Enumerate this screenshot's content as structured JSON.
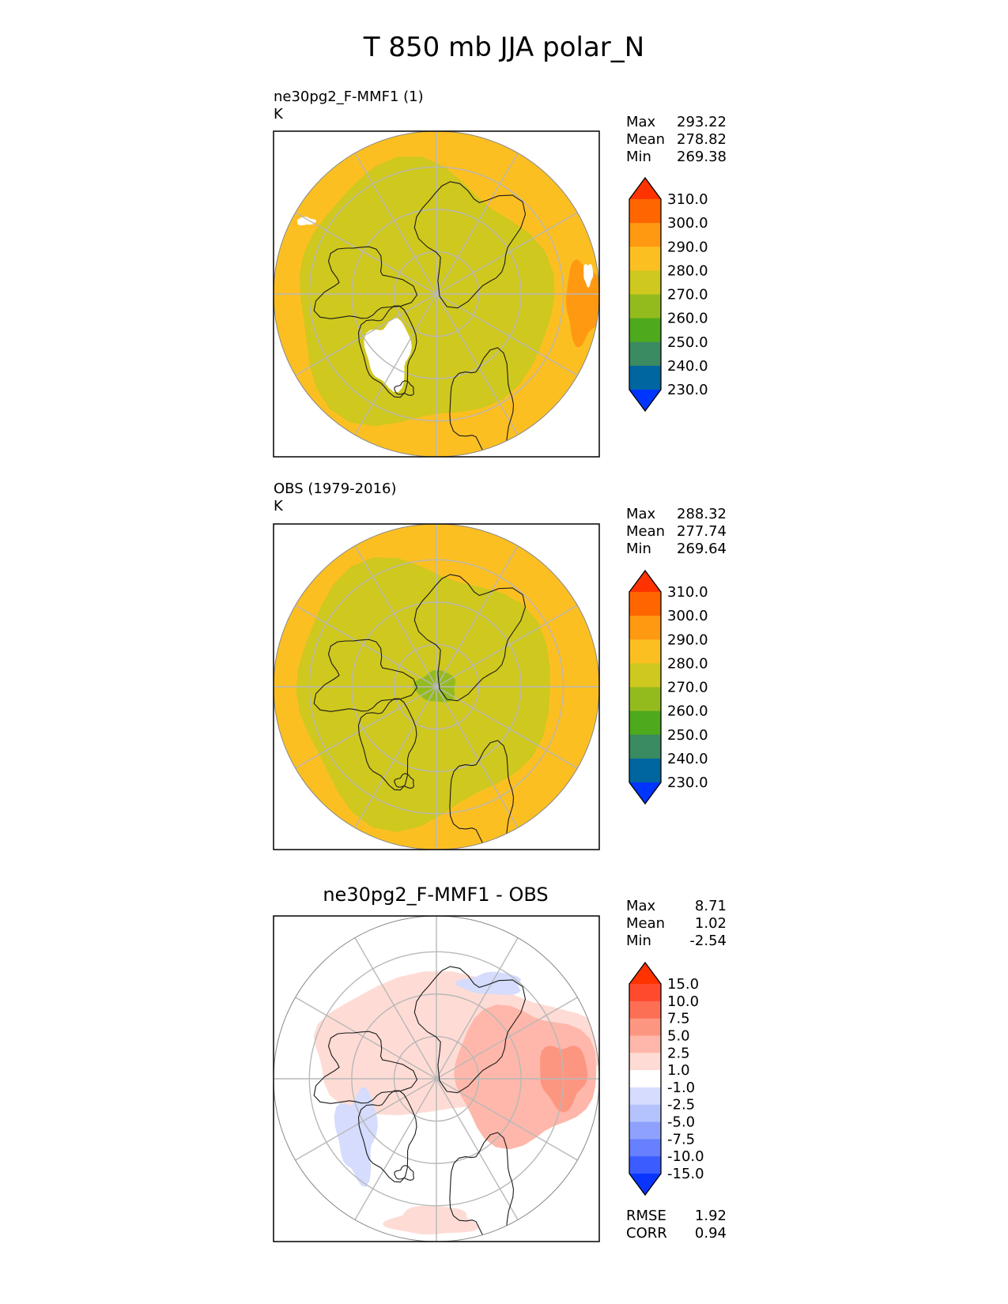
{
  "title": "T 850 mb JJA polar_N",
  "chart_data": [
    {
      "type": "heatmap",
      "projection": "north-polar-stereographic",
      "title": "ne30pg2_F-MMF1 (1)",
      "units": "K",
      "stats": [
        {
          "label": "Max",
          "value": "293.22"
        },
        {
          "label": "Mean",
          "value": "278.82"
        },
        {
          "label": "Min",
          "value": "269.38"
        }
      ],
      "colorbar": {
        "labels": [
          "310.0",
          "300.0",
          "290.0",
          "280.0",
          "270.0",
          "260.0",
          "250.0",
          "240.0",
          "230.0"
        ],
        "colors": [
          "#ff3300",
          "#ff6600",
          "#ff9911",
          "#fcbf22",
          "#cfc81e",
          "#93bb1e",
          "#4ea91d",
          "#3a8a62",
          "#0066a0",
          "#0035ff"
        ],
        "extend": "both"
      }
    },
    {
      "type": "heatmap",
      "projection": "north-polar-stereographic",
      "title": "OBS (1979-2016)",
      "units": "K",
      "stats": [
        {
          "label": "Max",
          "value": "288.32"
        },
        {
          "label": "Mean",
          "value": "277.74"
        },
        {
          "label": "Min",
          "value": "269.64"
        }
      ],
      "colorbar": {
        "labels": [
          "310.0",
          "300.0",
          "290.0",
          "280.0",
          "270.0",
          "260.0",
          "250.0",
          "240.0",
          "230.0"
        ],
        "colors": [
          "#ff3300",
          "#ff6600",
          "#ff9911",
          "#fcbf22",
          "#cfc81e",
          "#93bb1e",
          "#4ea91d",
          "#3a8a62",
          "#0066a0",
          "#0035ff"
        ],
        "extend": "both"
      }
    },
    {
      "type": "heatmap",
      "projection": "north-polar-stereographic",
      "title": "ne30pg2_F-MMF1 - OBS",
      "stats": [
        {
          "label": "Max",
          "value": "8.71"
        },
        {
          "label": "Mean",
          "value": "1.02"
        },
        {
          "label": "Min",
          "value": "-2.54"
        }
      ],
      "metrics": [
        {
          "label": "RMSE",
          "value": "1.92"
        },
        {
          "label": "CORR",
          "value": "0.94"
        }
      ],
      "colorbar": {
        "labels": [
          "15.0",
          "10.0",
          "7.5",
          "5.0",
          "2.5",
          "1.0",
          "-1.0",
          "-2.5",
          "-5.0",
          "-7.5",
          "-10.0",
          "-15.0"
        ],
        "colors": [
          "#ff3300",
          "#ff4a2e",
          "#fd6f55",
          "#fd9680",
          "#feb7aa",
          "#fedcd5",
          "#ffffff",
          "#d5dcfd",
          "#b5c3fd",
          "#8ea2fd",
          "#6680fe",
          "#3b5cfe",
          "#0a35ff"
        ],
        "extend": "both"
      }
    }
  ]
}
